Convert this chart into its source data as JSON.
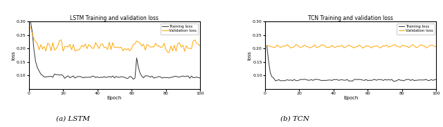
{
  "lstm_title": "LSTM Training and validation loss",
  "tcn_title": "TCN Training and validation loss",
  "xlabel": "Epoch",
  "ylabel": "loss",
  "legend_train": "Training loss",
  "legend_val": "Validation loss",
  "caption_lstm": "(a) LSTM",
  "caption_tcn": "(b) TCN",
  "train_color": "#333333",
  "val_color": "#FFA500",
  "ylim": [
    0.05,
    0.3
  ],
  "xlim": [
    0,
    100
  ],
  "yticks": [
    0.1,
    0.15,
    0.2,
    0.25,
    0.3
  ],
  "xticks": [
    0,
    20,
    40,
    60,
    80,
    100
  ],
  "epochs": 100
}
